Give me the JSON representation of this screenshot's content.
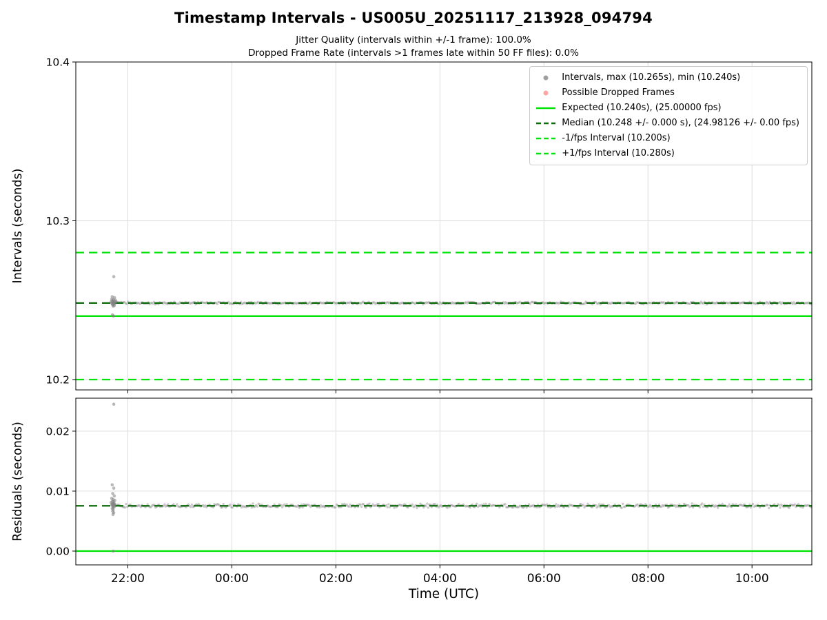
{
  "title": "Timestamp Intervals - US005U_20251117_213928_094794",
  "subtitle_jitter": "Jitter Quality (intervals within +/-1 frame): 100.0%",
  "subtitle_dropped": "Dropped Frame Rate (intervals >1 frames late within 50 FF files): 0.0%",
  "xlabel": "Time (UTC)",
  "colors": {
    "scatter": "#7f7f7f",
    "dropped": "#ff8585",
    "expected": "#00e408",
    "median": "#0b6b0b",
    "fps_interval": "#00e408",
    "grid": "#dcdcdc",
    "spine": "#000000"
  },
  "chart_data": [
    {
      "type": "scatter",
      "ylabel": "Intervals (seconds)",
      "ylim": [
        10.1935,
        10.4
      ],
      "yticks": [
        10.2,
        10.3,
        10.4
      ],
      "ytick_labels": [
        "10.2",
        "10.3",
        "10.4"
      ],
      "xlim": [
        21.0,
        35.15
      ],
      "xticks": [
        22,
        24,
        26,
        28,
        30,
        32,
        34
      ],
      "xtick_labels": [
        "22:00",
        "00:00",
        "02:00",
        "04:00",
        "06:00",
        "08:00",
        "10:00"
      ],
      "grid": true,
      "stats": {
        "max_interval_s": 10.265,
        "min_interval_s": 10.24,
        "median_interval_s": 10.248,
        "median_tolerance_s": 0.0,
        "median_fps": 24.98126,
        "expected_interval_s": 10.24,
        "expected_fps": 25.0,
        "minus_1fps_interval_s": 10.2,
        "plus_1fps_interval_s": 10.28,
        "jitter_quality_pct": 100.0,
        "dropped_frame_rate_pct": 0.0
      },
      "band": {
        "x_start": 21.72,
        "x_end": 35.15,
        "y": 10.2482,
        "jitter": 0.0009
      },
      "cluster_points": [
        [
          21.73,
          10.2648
        ],
        [
          21.7,
          10.2522
        ],
        [
          21.745,
          10.2516
        ],
        [
          21.69,
          10.2506
        ],
        [
          21.72,
          10.2503
        ],
        [
          21.76,
          10.25
        ],
        [
          21.7,
          10.2496
        ],
        [
          21.73,
          10.2494
        ],
        [
          21.77,
          10.2492
        ],
        [
          21.68,
          10.249
        ],
        [
          21.71,
          10.2488
        ],
        [
          21.74,
          10.2486
        ],
        [
          21.72,
          10.2484
        ],
        [
          21.69,
          10.2482
        ],
        [
          21.75,
          10.248
        ],
        [
          21.7,
          10.2477
        ],
        [
          21.73,
          10.2474
        ],
        [
          21.71,
          10.247
        ],
        [
          21.74,
          10.2466
        ],
        [
          21.72,
          10.2462
        ],
        [
          21.705,
          10.2408
        ],
        [
          21.725,
          10.24
        ]
      ],
      "lines": [
        {
          "name": "plus-1fps-interval",
          "y": 10.28,
          "style": "dashed",
          "color": "fps_interval",
          "width": 2.2
        },
        {
          "name": "minus-1fps-interval",
          "y": 10.2,
          "style": "dashed",
          "color": "fps_interval",
          "width": 2.2
        },
        {
          "name": "expected",
          "y": 10.24,
          "style": "solid",
          "color": "expected",
          "width": 2.4
        },
        {
          "name": "median",
          "y": 10.2482,
          "style": "dashed",
          "color": "median",
          "width": 2.2,
          "top": true
        }
      ],
      "legend": [
        {
          "label": "Intervals, max (10.265s), min (10.240s)",
          "marker": "dot",
          "color": "scatter"
        },
        {
          "label": "Possible Dropped Frames",
          "marker": "dot",
          "color": "dropped"
        },
        {
          "label": "Expected (10.240s), (25.00000 fps)",
          "marker": "line-solid",
          "color": "expected"
        },
        {
          "label": "Median (10.248 +/- 0.000 s), (24.98126 +/- 0.00 fps)",
          "marker": "line-dashed",
          "color": "median"
        },
        {
          "label": "-1/fps Interval (10.200s)",
          "marker": "line-dashed",
          "color": "fps_interval"
        },
        {
          "label": "+1/fps Interval (10.280s)",
          "marker": "line-dashed",
          "color": "fps_interval"
        }
      ]
    },
    {
      "type": "scatter",
      "ylabel": "Residuals (seconds)",
      "ylim": [
        -0.0023,
        0.0255
      ],
      "yticks": [
        0.0,
        0.01,
        0.02
      ],
      "ytick_labels": [
        "0.00",
        "0.01",
        "0.02"
      ],
      "xlim": [
        21.0,
        35.15
      ],
      "xticks": [
        22,
        24,
        26,
        28,
        30,
        32,
        34
      ],
      "xtick_labels": [
        "22:00",
        "00:00",
        "02:00",
        "04:00",
        "06:00",
        "08:00",
        "10:00"
      ],
      "grid": true,
      "band": {
        "x_start": 21.75,
        "x_end": 35.15,
        "y": 0.00755,
        "jitter": 0.0004
      },
      "cluster_points": [
        [
          21.73,
          0.0245
        ],
        [
          21.7,
          0.01105
        ],
        [
          21.73,
          0.0105
        ],
        [
          21.71,
          0.0096
        ],
        [
          21.74,
          0.0092
        ],
        [
          21.69,
          0.0088
        ],
        [
          21.72,
          0.0086
        ],
        [
          21.75,
          0.00845
        ],
        [
          21.7,
          0.0083
        ],
        [
          21.73,
          0.0082
        ],
        [
          21.68,
          0.0081
        ],
        [
          21.71,
          0.008
        ],
        [
          21.74,
          0.00792
        ],
        [
          21.72,
          0.00785
        ],
        [
          21.69,
          0.00778
        ],
        [
          21.75,
          0.00772
        ],
        [
          21.7,
          0.00765
        ],
        [
          21.73,
          0.00758
        ],
        [
          21.71,
          0.0075
        ],
        [
          21.74,
          0.0074
        ],
        [
          21.72,
          0.00725
        ],
        [
          21.7,
          0.0071
        ],
        [
          21.72,
          0.0069
        ],
        [
          21.71,
          0.00665
        ],
        [
          21.73,
          0.0064
        ],
        [
          21.715,
          0.0061
        ],
        [
          21.72,
          0.0
        ]
      ],
      "lines": [
        {
          "name": "expected-residual",
          "y": 0.0,
          "style": "solid",
          "color": "expected",
          "width": 2.4
        },
        {
          "name": "median-residual",
          "y": 0.00755,
          "style": "dashed",
          "color": "median",
          "width": 2.2,
          "top": true
        }
      ],
      "legend": []
    }
  ]
}
